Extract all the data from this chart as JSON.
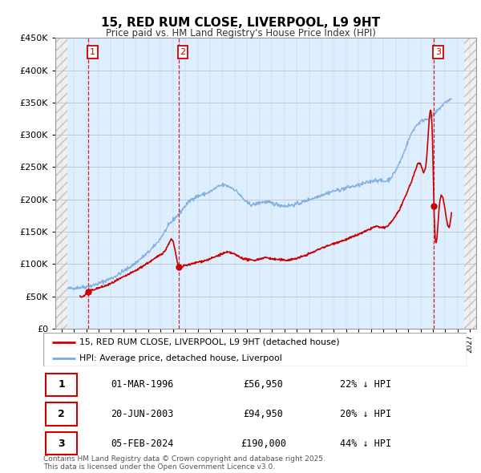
{
  "title": "15, RED RUM CLOSE, LIVERPOOL, L9 9HT",
  "subtitle": "Price paid vs. HM Land Registry's House Price Index (HPI)",
  "legend_property": "15, RED RUM CLOSE, LIVERPOOL, L9 9HT (detached house)",
  "legend_hpi": "HPI: Average price, detached house, Liverpool",
  "footer": "Contains HM Land Registry data © Crown copyright and database right 2025.\nThis data is licensed under the Open Government Licence v3.0.",
  "sales": [
    {
      "num": 1,
      "date": "01-MAR-1996",
      "price": 56950,
      "pct": "22% ↓ HPI",
      "year": 1996.17
    },
    {
      "num": 2,
      "date": "20-JUN-2003",
      "price": 94950,
      "pct": "20% ↓ HPI",
      "year": 2003.47
    },
    {
      "num": 3,
      "date": "05-FEB-2024",
      "price": 190000,
      "pct": "44% ↓ HPI",
      "year": 2024.09
    }
  ],
  "ylim": [
    0,
    450000
  ],
  "xlim_left": 1993.5,
  "xlim_right": 2027.5,
  "data_start_year": 1994.5,
  "data_end_year": 2026.5,
  "red_line_color": "#cc0000",
  "blue_line_color": "#7aaadd",
  "dashed_line_color": "#cc0000",
  "hpi_data": {
    "years": [
      1994.5,
      1995.0,
      1995.5,
      1996.0,
      1996.5,
      1997.0,
      1997.5,
      1998.0,
      1998.5,
      1999.0,
      1999.5,
      2000.0,
      2000.5,
      2001.0,
      2001.5,
      2002.0,
      2002.5,
      2003.0,
      2003.5,
      2004.0,
      2004.5,
      2005.0,
      2005.5,
      2006.0,
      2006.5,
      2007.0,
      2007.5,
      2008.0,
      2008.5,
      2009.0,
      2009.5,
      2010.0,
      2010.5,
      2011.0,
      2011.5,
      2012.0,
      2012.5,
      2013.0,
      2013.5,
      2014.0,
      2014.5,
      2015.0,
      2015.5,
      2016.0,
      2016.5,
      2017.0,
      2017.5,
      2018.0,
      2018.5,
      2019.0,
      2019.5,
      2020.0,
      2020.5,
      2021.0,
      2021.5,
      2022.0,
      2022.5,
      2023.0,
      2023.5,
      2024.0,
      2024.5,
      2025.0,
      2025.5
    ],
    "values": [
      62000,
      63000,
      64000,
      65000,
      67000,
      70000,
      74000,
      78000,
      83000,
      89000,
      95000,
      102000,
      110000,
      118000,
      128000,
      140000,
      155000,
      168000,
      178000,
      190000,
      200000,
      205000,
      208000,
      212000,
      218000,
      222000,
      220000,
      215000,
      205000,
      195000,
      192000,
      195000,
      196000,
      194000,
      192000,
      190000,
      191000,
      193000,
      196000,
      200000,
      203000,
      207000,
      210000,
      213000,
      215000,
      218000,
      220000,
      222000,
      225000,
      228000,
      230000,
      228000,
      232000,
      245000,
      265000,
      290000,
      310000,
      320000,
      325000,
      330000,
      340000,
      350000,
      355000
    ]
  },
  "prop_data": {
    "years": [
      1995.5,
      1996.0,
      1996.17,
      1996.5,
      1997.0,
      1997.5,
      1998.0,
      1998.5,
      1999.0,
      1999.5,
      2000.0,
      2000.5,
      2001.0,
      2001.5,
      2002.0,
      2002.5,
      2003.0,
      2003.47,
      2003.8,
      2004.0,
      2004.5,
      2005.0,
      2005.5,
      2006.0,
      2006.5,
      2007.0,
      2007.5,
      2008.0,
      2008.5,
      2009.0,
      2009.5,
      2010.0,
      2010.5,
      2011.0,
      2011.5,
      2012.0,
      2012.5,
      2013.0,
      2013.5,
      2014.0,
      2014.5,
      2015.0,
      2015.5,
      2016.0,
      2016.5,
      2017.0,
      2017.5,
      2018.0,
      2018.5,
      2019.0,
      2019.5,
      2020.0,
      2020.5,
      2021.0,
      2021.5,
      2022.0,
      2022.5,
      2023.0,
      2023.5,
      2024.0,
      2024.09,
      2024.5,
      2025.0,
      2025.5
    ],
    "values": [
      50000,
      54000,
      56950,
      60000,
      63000,
      66000,
      70000,
      75000,
      80000,
      85000,
      90000,
      96000,
      102000,
      108000,
      115000,
      125000,
      135000,
      94950,
      96000,
      98000,
      100000,
      103000,
      105000,
      108000,
      112000,
      116000,
      118000,
      115000,
      110000,
      107000,
      106000,
      108000,
      110000,
      108000,
      107000,
      106000,
      107000,
      109000,
      112000,
      116000,
      120000,
      125000,
      128000,
      132000,
      135000,
      138000,
      142000,
      146000,
      150000,
      155000,
      158000,
      156000,
      162000,
      175000,
      192000,
      215000,
      240000,
      255000,
      265000,
      270000,
      190000,
      185000,
      182000,
      180000
    ]
  }
}
